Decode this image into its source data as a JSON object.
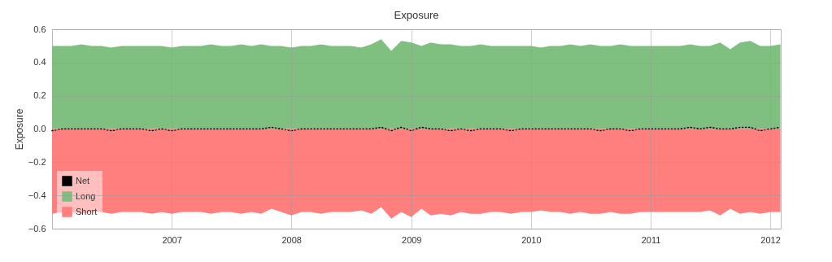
{
  "chart_data": {
    "type": "area",
    "title": "Exposure",
    "ylabel": "Exposure",
    "x": [
      "2006-01",
      "2006-02",
      "2006-03",
      "2006-04",
      "2006-05",
      "2006-06",
      "2006-07",
      "2006-08",
      "2006-09",
      "2006-10",
      "2006-11",
      "2006-12",
      "2007-01",
      "2007-02",
      "2007-03",
      "2007-04",
      "2007-05",
      "2007-06",
      "2007-07",
      "2007-08",
      "2007-09",
      "2007-10",
      "2007-11",
      "2007-12",
      "2008-01",
      "2008-02",
      "2008-03",
      "2008-04",
      "2008-05",
      "2008-06",
      "2008-07",
      "2008-08",
      "2008-09",
      "2008-10",
      "2008-11",
      "2008-12",
      "2009-01",
      "2009-02",
      "2009-03",
      "2009-04",
      "2009-05",
      "2009-06",
      "2009-07",
      "2009-08",
      "2009-09",
      "2009-10",
      "2009-11",
      "2009-12",
      "2010-01",
      "2010-02",
      "2010-03",
      "2010-04",
      "2010-05",
      "2010-06",
      "2010-07",
      "2010-08",
      "2010-09",
      "2010-10",
      "2010-11",
      "2010-12",
      "2011-01",
      "2011-02",
      "2011-03",
      "2011-04",
      "2011-05",
      "2011-06",
      "2011-07",
      "2011-08",
      "2011-09",
      "2011-10",
      "2011-11",
      "2011-12",
      "2012-01",
      "2012-02"
    ],
    "series": [
      {
        "name": "Net",
        "type": "line",
        "line_style": "dotted",
        "color": "#000000",
        "values": [
          -0.01,
          0.0,
          0.0,
          0.0,
          0.0,
          0.0,
          -0.01,
          0.0,
          0.0,
          0.0,
          -0.01,
          0.0,
          -0.01,
          0.0,
          0.0,
          0.0,
          0.0,
          0.0,
          0.0,
          0.0,
          0.0,
          0.0,
          0.01,
          0.0,
          -0.01,
          0.0,
          0.0,
          0.0,
          0.0,
          0.0,
          0.0,
          0.0,
          0.0,
          0.01,
          -0.01,
          0.01,
          -0.01,
          0.01,
          0.0,
          0.0,
          -0.01,
          0.0,
          -0.01,
          0.0,
          0.0,
          0.0,
          -0.01,
          0.0,
          0.0,
          0.0,
          0.0,
          0.0,
          0.0,
          0.0,
          0.0,
          -0.01,
          0.0,
          0.0,
          -0.01,
          0.0,
          0.0,
          0.0,
          0.0,
          0.0,
          0.01,
          0.0,
          0.01,
          0.0,
          0.0,
          0.01,
          0.01,
          -0.01,
          0.0,
          0.01
        ]
      },
      {
        "name": "Long",
        "color": "#7fbf7f",
        "values": [
          0.5,
          0.5,
          0.5,
          0.51,
          0.5,
          0.5,
          0.49,
          0.5,
          0.5,
          0.5,
          0.5,
          0.5,
          0.49,
          0.5,
          0.5,
          0.5,
          0.51,
          0.5,
          0.5,
          0.51,
          0.5,
          0.51,
          0.5,
          0.5,
          0.49,
          0.5,
          0.5,
          0.51,
          0.5,
          0.5,
          0.5,
          0.49,
          0.51,
          0.54,
          0.47,
          0.53,
          0.52,
          0.5,
          0.52,
          0.51,
          0.51,
          0.5,
          0.5,
          0.51,
          0.5,
          0.5,
          0.5,
          0.5,
          0.5,
          0.49,
          0.5,
          0.5,
          0.51,
          0.5,
          0.51,
          0.5,
          0.5,
          0.51,
          0.5,
          0.5,
          0.5,
          0.5,
          0.5,
          0.5,
          0.51,
          0.5,
          0.5,
          0.52,
          0.48,
          0.52,
          0.53,
          0.5,
          0.5,
          0.51
        ]
      },
      {
        "name": "Short",
        "color": "#ff7f7f",
        "values": [
          -0.51,
          -0.5,
          -0.5,
          -0.51,
          -0.5,
          -0.5,
          -0.51,
          -0.5,
          -0.5,
          -0.5,
          -0.51,
          -0.5,
          -0.51,
          -0.5,
          -0.5,
          -0.5,
          -0.51,
          -0.5,
          -0.5,
          -0.51,
          -0.5,
          -0.51,
          -0.48,
          -0.5,
          -0.52,
          -0.5,
          -0.5,
          -0.51,
          -0.5,
          -0.5,
          -0.5,
          -0.49,
          -0.51,
          -0.47,
          -0.54,
          -0.5,
          -0.53,
          -0.48,
          -0.52,
          -0.51,
          -0.52,
          -0.5,
          -0.51,
          -0.51,
          -0.5,
          -0.5,
          -0.51,
          -0.5,
          -0.5,
          -0.49,
          -0.5,
          -0.5,
          -0.51,
          -0.5,
          -0.51,
          -0.51,
          -0.5,
          -0.51,
          -0.51,
          -0.5,
          -0.5,
          -0.5,
          -0.5,
          -0.5,
          -0.5,
          -0.5,
          -0.49,
          -0.52,
          -0.48,
          -0.51,
          -0.5,
          -0.51,
          -0.5,
          -0.5
        ]
      }
    ],
    "xlim": [
      "2006-01-01",
      "2012-02-02"
    ],
    "xticks": [
      {
        "value": "2007",
        "label": "2007"
      },
      {
        "value": "2008",
        "label": "2008"
      },
      {
        "value": "2009",
        "label": "2009"
      },
      {
        "value": "2010",
        "label": "2010"
      },
      {
        "value": "2011",
        "label": "2011"
      },
      {
        "value": "2012",
        "label": "2012"
      }
    ],
    "ylim": [
      -0.6,
      0.6
    ],
    "yticks": [
      {
        "value": -0.6,
        "label": "−0.6"
      },
      {
        "value": -0.4,
        "label": "−0.4"
      },
      {
        "value": -0.2,
        "label": "−0.2"
      },
      {
        "value": 0,
        "label": "0.0"
      },
      {
        "value": 0.2,
        "label": "0.2"
      },
      {
        "value": 0.4,
        "label": "0.4"
      },
      {
        "value": 0.6,
        "label": "0.6"
      }
    ],
    "grid": true,
    "legend": "bottom left"
  }
}
